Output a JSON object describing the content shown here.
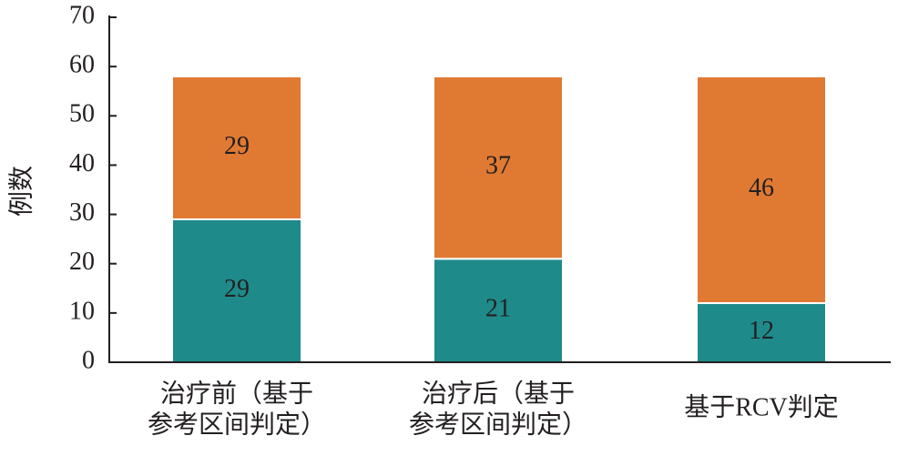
{
  "chart_data": {
    "type": "stacked-bar",
    "y_label": "例数",
    "categories": [
      [
        "治疗前（基于",
        "参考区间判定）"
      ],
      [
        "治疗后（基于",
        "参考区间判定）"
      ],
      [
        "基于RCV判定"
      ]
    ],
    "series": [
      {
        "color": "#1f8a8a",
        "values": [
          29,
          21,
          12
        ]
      },
      {
        "color": "#e07a33",
        "values": [
          29,
          37,
          46
        ]
      }
    ],
    "ylim": [
      0,
      70
    ],
    "yticks": [
      0,
      10,
      20,
      30,
      40,
      50,
      60,
      70
    ]
  }
}
